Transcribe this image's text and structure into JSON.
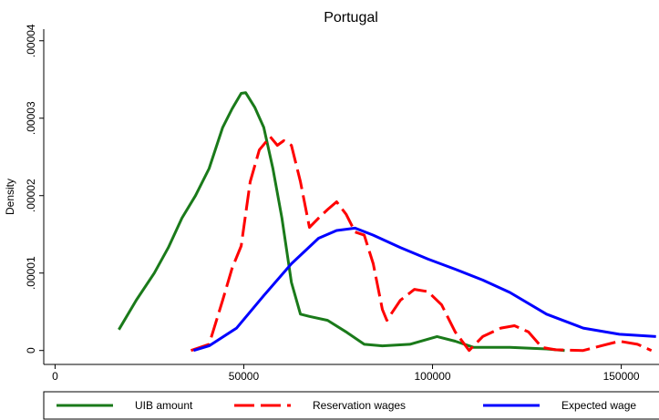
{
  "chart_data": {
    "type": "line",
    "title": "Portugal",
    "y_label": "Density",
    "xlim": [
      -3000,
      160000
    ],
    "xticks": [
      0,
      50000,
      100000,
      150000
    ],
    "ylim": [
      -1.8e-06,
      4.15e-05
    ],
    "yticks": [
      0,
      {
        "value": 1e-05,
        "label": ".00001"
      },
      {
        "value": 2e-05,
        "label": ".00002"
      },
      {
        "value": 3e-05,
        "label": ".00003"
      },
      {
        "value": 4e-05,
        "label": ".00004"
      }
    ],
    "legend": "bottom",
    "series": [
      {
        "name": "UIB amount",
        "color": "#1a7a1a",
        "linestyle": "solid",
        "x": [
          16900,
          21500,
          26300,
          30000,
          33600,
          37200,
          40800,
          44400,
          46900,
          49300,
          50500,
          52900,
          55300,
          57700,
          60100,
          62600,
          65000,
          67400,
          72200,
          77100,
          81900,
          86700,
          94000,
          101200,
          106000,
          110900,
          120500,
          130200,
          135000
        ],
        "values": [
          2.7e-06,
          6.5e-06,
          1e-05,
          1.33e-05,
          1.71e-05,
          2e-05,
          2.35e-05,
          2.88e-05,
          3.12e-05,
          3.32e-05,
          3.33e-05,
          3.14e-05,
          2.88e-05,
          2.35e-05,
          1.71e-05,
          8.8e-06,
          4.7e-06,
          4.4e-06,
          3.9e-06,
          2.4e-06,
          8e-07,
          6e-07,
          8e-07,
          1.8e-06,
          1.2e-06,
          4e-07,
          4e-07,
          2e-07,
          0
        ]
      },
      {
        "name": "Reservation wages",
        "color": "#ff0000",
        "linestyle": "dashed",
        "x": [
          36000,
          40800,
          44400,
          46900,
          49300,
          51700,
          54100,
          57000,
          58900,
          60600,
          62600,
          65000,
          67400,
          69800,
          72200,
          74600,
          77100,
          79500,
          81900,
          84300,
          86700,
          87900,
          91500,
          95200,
          98800,
          102400,
          106000,
          109700,
          113300,
          118100,
          121700,
          125400,
          129000,
          132600,
          139900,
          144700,
          149500,
          154300,
          158000
        ],
        "values": [
          0,
          8e-07,
          6.5e-06,
          1.06e-05,
          1.35e-05,
          2.18e-05,
          2.59e-05,
          2.76e-05,
          2.65e-05,
          2.71e-05,
          2.65e-05,
          2.18e-05,
          1.59e-05,
          1.71e-05,
          1.82e-05,
          1.92e-05,
          1.76e-05,
          1.53e-05,
          1.49e-05,
          1.12e-05,
          5.3e-06,
          3.9e-06,
          6.5e-06,
          7.9e-06,
          7.6e-06,
          5.9e-06,
          2.4e-06,
          0,
          1.8e-06,
          2.9e-06,
          3.2e-06,
          2.4e-06,
          4e-07,
          1e-07,
          0,
          6e-07,
          1.2e-06,
          8e-07,
          0
        ]
      },
      {
        "name": "Expected wage",
        "color": "#0000ff",
        "linestyle": "solid",
        "x": [
          36700,
          40800,
          48100,
          55300,
          62600,
          69800,
          74600,
          79500,
          84300,
          91500,
          98800,
          106000,
          113300,
          120500,
          130200,
          139900,
          149500,
          159200
        ],
        "values": [
          0,
          6e-07,
          2.9e-06,
          7.1e-06,
          1.12e-05,
          1.45e-05,
          1.55e-05,
          1.58e-05,
          1.49e-05,
          1.33e-05,
          1.18e-05,
          1.05e-05,
          9.1e-06,
          7.5e-06,
          4.7e-06,
          2.9e-06,
          2.1e-06,
          1.8e-06
        ]
      }
    ]
  }
}
